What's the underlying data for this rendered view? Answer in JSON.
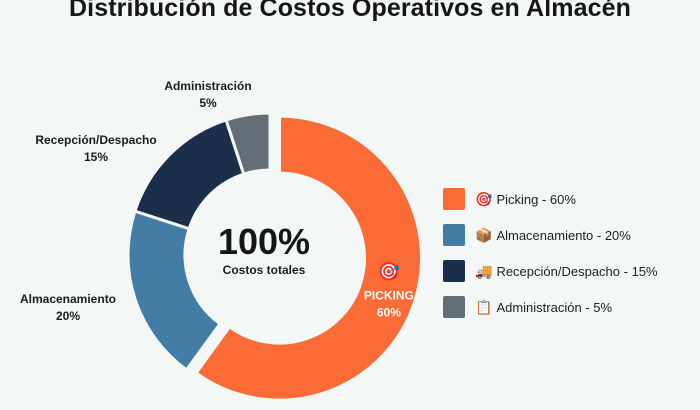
{
  "chart_data": {
    "type": "pie",
    "title": "Distribución de Costos Operativos en Almacén",
    "center": {
      "value": "100%",
      "label": "Costos totales"
    },
    "slices": [
      {
        "name": "Picking",
        "value": 60,
        "color": "#fb6b35",
        "inner_label": "PICKING",
        "inner_value": "60%",
        "icon": "target-icon",
        "legend": "Picking - 60%"
      },
      {
        "name": "Almacenamiento",
        "value": 20,
        "color": "#437da6",
        "outer_label": "Almacenamiento",
        "outer_value": "20%",
        "icon": "package-icon",
        "legend": "Almacenamiento - 20%"
      },
      {
        "name": "Recepción/Despacho",
        "value": 15,
        "color": "#1b2e4a",
        "outer_label": "Recepción/Despacho",
        "outer_value": "15%",
        "icon": "truck-icon",
        "legend": "Recepción/Despacho - 15%"
      },
      {
        "name": "Administración",
        "value": 5,
        "color": "#646e77",
        "outer_label": "Administración",
        "outer_value": "5%",
        "icon": "clipboard-icon",
        "legend": "Administración - 5%"
      }
    ],
    "legend_position": "right"
  }
}
